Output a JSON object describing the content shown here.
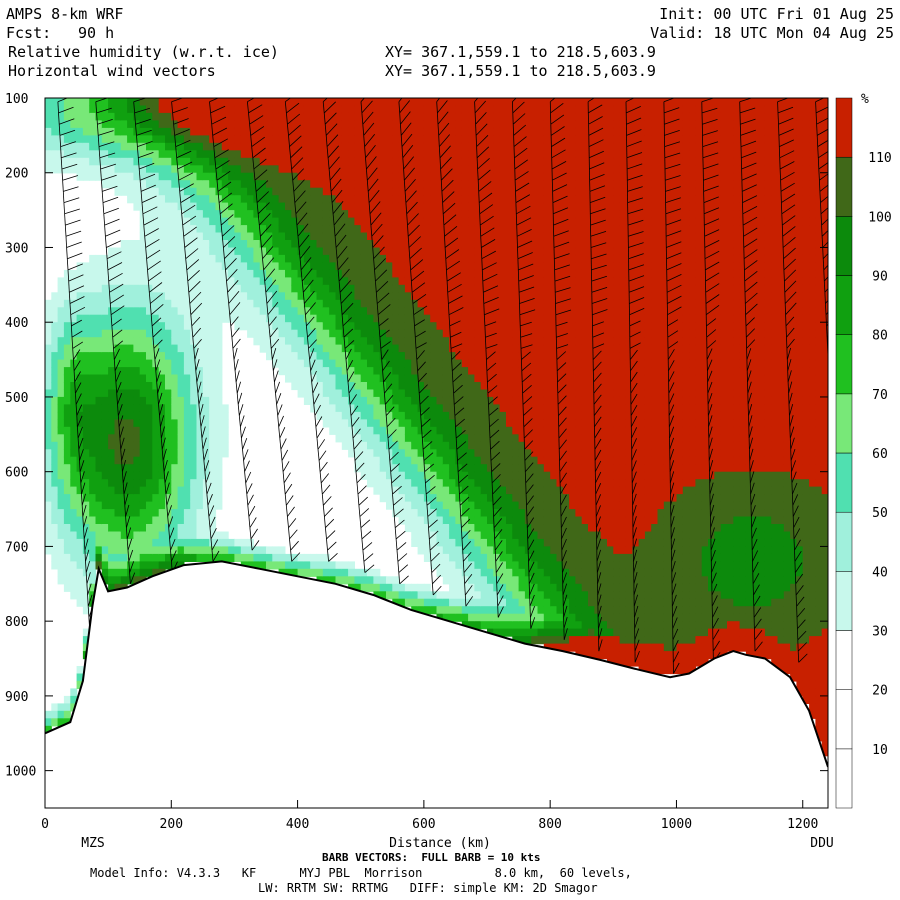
{
  "header": {
    "model": "AMPS 8-km WRF",
    "init": "Init: 00 UTC Fri 01 Aug 25",
    "fcst_label": "Fcst:",
    "fcst_value": "90 h",
    "valid": "Valid: 18 UTC Mon 04 Aug 25",
    "field1": "Relative humidity (w.r.t. ice)",
    "field2": "Horizontal wind vectors",
    "xy1": "XY= 367.1,559.1 to 218.5,603.9",
    "xy2": "XY= 367.1,559.1 to 218.5,603.9"
  },
  "footer": {
    "barb_note": "BARB VECTORS:  FULL BARB = 10 kts",
    "model_info": "Model Info: V4.3.3   KF      MYJ PBL  Morrison          8.0 km,  60 levels,",
    "physics": "LW: RRTM SW: RRTMG   DIFF: simple KM: 2D Smagor"
  },
  "colors": {
    "c0": "#ffffff",
    "c10": "#ffffff",
    "c20": "#ffffff",
    "c30": "#c8f8ec",
    "c40": "#a0f0dc",
    "c50": "#50e0b0",
    "c60": "#78e878",
    "c70": "#20c020",
    "c80": "#10a010",
    "c90": "#0c8a0c",
    "c100": "#406818",
    "c110": "#c82000",
    "terrain": "#000000"
  },
  "chart_data": {
    "type": "heatmap",
    "title": "Relative humidity (w.r.t. ice)",
    "xlabel": "Distance (km)",
    "ylabel": "",
    "xlim": [
      0,
      1240
    ],
    "ylim": [
      1050,
      100
    ],
    "x_ticks": [
      0,
      200,
      400,
      600,
      800,
      1000,
      1200
    ],
    "y_ticks": [
      100,
      200,
      300,
      400,
      500,
      600,
      700,
      800,
      900,
      1000
    ],
    "endpoint_left": "MZS",
    "endpoint_right": "DDU",
    "colorbar": {
      "unit": "%",
      "levels": [
        10,
        20,
        30,
        40,
        50,
        60,
        70,
        80,
        90,
        100,
        110
      ]
    },
    "terrain_profile": {
      "x": [
        0,
        40,
        60,
        75,
        85,
        100,
        130,
        170,
        220,
        280,
        340,
        400,
        460,
        520,
        580,
        640,
        700,
        760,
        820,
        880,
        940,
        990,
        1020,
        1060,
        1090,
        1110,
        1140,
        1180,
        1210,
        1240
      ],
      "p": [
        950,
        935,
        880,
        780,
        730,
        760,
        755,
        740,
        725,
        720,
        730,
        740,
        750,
        765,
        785,
        800,
        815,
        830,
        840,
        852,
        865,
        875,
        870,
        850,
        840,
        845,
        850,
        875,
        920,
        995
      ]
    }
  }
}
